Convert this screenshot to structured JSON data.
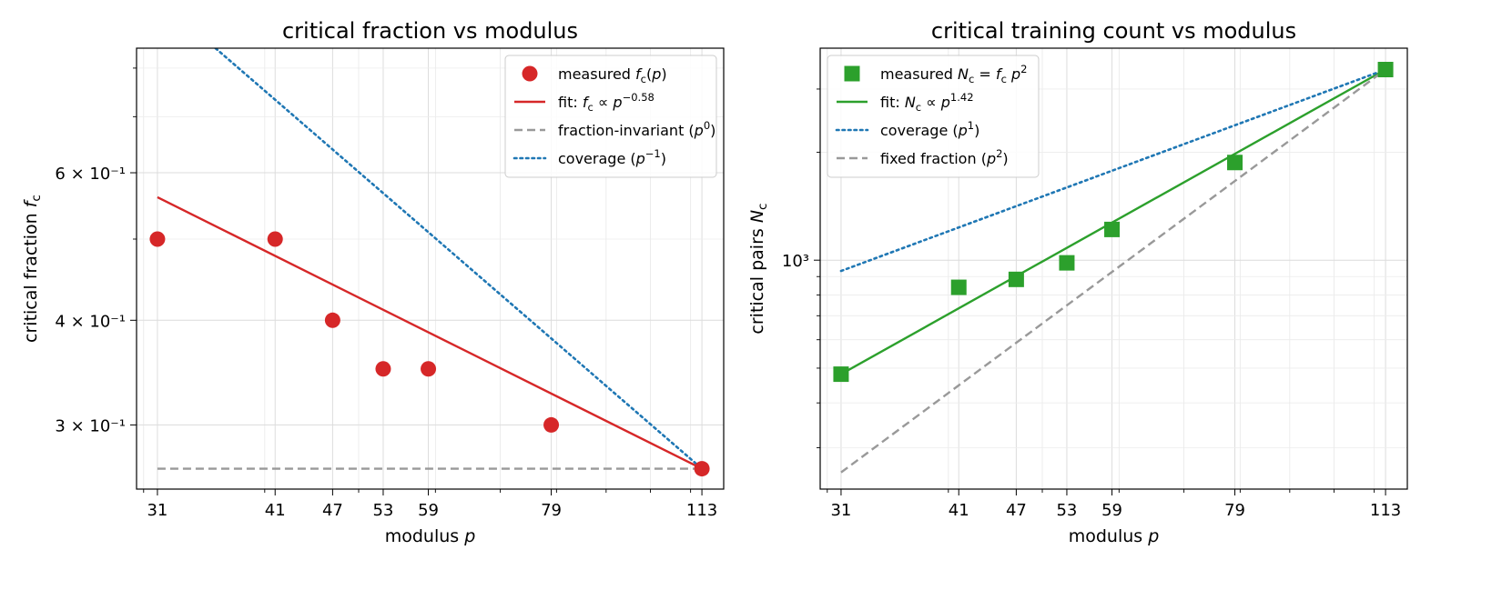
{
  "chart_data": [
    {
      "type": "scatter",
      "title": "critical fraction vs modulus",
      "xlabel": "modulus p",
      "ylabel": "critical fraction f_c",
      "xscale": "log",
      "yscale": "log",
      "xlim": [
        29.5,
        119
      ],
      "ylim": [
        0.2515,
        0.845
      ],
      "grid": true,
      "legend_position": "top-right",
      "x_ticks": [
        31,
        41,
        47,
        53,
        59,
        79,
        113
      ],
      "x_tick_labels": [
        "31",
        "41",
        "47",
        "53",
        "59",
        "79",
        "113"
      ],
      "y_major_ticks": [
        0.3,
        0.4,
        0.6
      ],
      "y_tick_labels": [
        "3 × 10⁻¹",
        "4 × 10⁻¹",
        "6 × 10⁻¹"
      ],
      "series": [
        {
          "name": "measured f_c(p)",
          "kind": "points",
          "color": "#d62728",
          "x": [
            31,
            41,
            47,
            53,
            59,
            79,
            113
          ],
          "y": [
            0.5,
            0.5,
            0.4,
            0.35,
            0.35,
            0.3,
            0.266
          ]
        },
        {
          "name": "fit: f_c ∝ p^−0.58",
          "kind": "line",
          "color": "#d62728",
          "x": [
            31,
            113
          ],
          "y": [
            0.561,
            0.266
          ]
        },
        {
          "name": "fraction-invariant (p^0)",
          "kind": "line",
          "style": "dashed",
          "color": "#999999",
          "x": [
            31,
            113
          ],
          "y": [
            0.266,
            0.266
          ]
        },
        {
          "name": "coverage (p^−1)",
          "kind": "line",
          "style": "dotted",
          "color": "#1f77b4",
          "x": [
            31,
            113
          ],
          "y": [
            0.97,
            0.266
          ]
        }
      ]
    },
    {
      "type": "scatter",
      "title": "critical training count vs modulus",
      "xlabel": "modulus p",
      "ylabel": "critical pairs N_c",
      "xscale": "log",
      "yscale": "log",
      "xlim": [
        29.5,
        119
      ],
      "ylim": [
        230,
        3900
      ],
      "grid": true,
      "legend_position": "top-left",
      "x_ticks": [
        31,
        41,
        47,
        53,
        59,
        79,
        113
      ],
      "x_tick_labels": [
        "31",
        "41",
        "47",
        "53",
        "59",
        "79",
        "113"
      ],
      "y_major_ticks": [
        1000
      ],
      "y_tick_labels": [
        "10³"
      ],
      "series": [
        {
          "name": "measured N_c = f_c p^2",
          "kind": "points",
          "color": "#2ca02c",
          "x": [
            31,
            41,
            47,
            53,
            59,
            79,
            113
          ],
          "y": [
            481,
            840,
            884,
            983,
            1218,
            1872,
            3400
          ]
        },
        {
          "name": "fit: N_c ∝ p^1.42",
          "kind": "line",
          "color": "#2ca02c",
          "x": [
            31,
            113
          ],
          "y": [
            481,
            3400
          ]
        },
        {
          "name": "coverage (p^1)",
          "kind": "line",
          "style": "dotted",
          "color": "#1f77b4",
          "x": [
            31,
            113
          ],
          "y": [
            933,
            3400
          ]
        },
        {
          "name": "fixed fraction (p^2)",
          "kind": "line",
          "style": "dashed",
          "color": "#999999",
          "x": [
            31,
            113
          ],
          "y": [
            256,
            3400
          ]
        }
      ]
    }
  ]
}
